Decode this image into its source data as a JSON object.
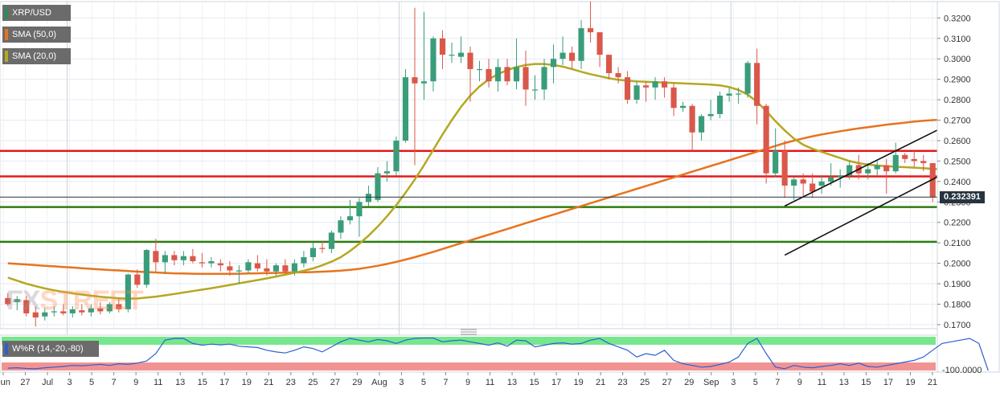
{
  "legend": {
    "symbol": "XRP/USD",
    "sma50": "SMA (50,0)",
    "sma20": "SMA (20,0)",
    "colors": {
      "symbol": "#2e8b57",
      "sma50": "#e8731e",
      "sma20": "#b5a820"
    }
  },
  "watermark": {
    "left": "FX",
    "right": "STREET"
  },
  "indicator": {
    "label": "W%R (14,-20,-80)",
    "bottom_value": "-100.0000"
  },
  "price_tag": "0.232391",
  "chart_data": {
    "type": "candlestick",
    "symbol": "XRP/USD",
    "ylim": [
      0.168,
      0.328
    ],
    "yticks": [
      "0.3200",
      "0.3100",
      "0.3000",
      "0.2900",
      "0.2800",
      "0.2700",
      "0.2600",
      "0.2500",
      "0.2400",
      "0.2300",
      "0.2200",
      "0.2100",
      "0.2000",
      "0.1900",
      "0.1800",
      "0.1700"
    ],
    "xticks": [
      "Jun",
      "27",
      "Jul",
      "3",
      "5",
      "7",
      "9",
      "11",
      "13",
      "15",
      "17",
      "19",
      "21",
      "23",
      "25",
      "27",
      "29",
      "Aug",
      "3",
      "5",
      "7",
      "9",
      "11",
      "13",
      "15",
      "17",
      "19",
      "21",
      "23",
      "25",
      "27",
      "29",
      "Sep",
      "3",
      "5",
      "7",
      "9",
      "11",
      "13",
      "15",
      "17",
      "19",
      "21"
    ],
    "horizontal_lines": [
      {
        "value": 0.255,
        "color": "#e31b1b"
      },
      {
        "value": 0.2425,
        "color": "#e31b1b"
      },
      {
        "value": 0.2275,
        "color": "#2e7d0f"
      },
      {
        "value": 0.2105,
        "color": "#2e7d0f"
      }
    ],
    "last_price": 0.232391,
    "candles": [
      {
        "o": 0.183,
        "h": 0.1855,
        "l": 0.179,
        "c": 0.18
      },
      {
        "o": 0.181,
        "h": 0.184,
        "l": 0.177,
        "c": 0.1825
      },
      {
        "o": 0.182,
        "h": 0.184,
        "l": 0.174,
        "c": 0.1755
      },
      {
        "o": 0.176,
        "h": 0.179,
        "l": 0.169,
        "c": 0.1735
      },
      {
        "o": 0.174,
        "h": 0.178,
        "l": 0.172,
        "c": 0.176
      },
      {
        "o": 0.176,
        "h": 0.179,
        "l": 0.174,
        "c": 0.1765
      },
      {
        "o": 0.1765,
        "h": 0.18,
        "l": 0.1745,
        "c": 0.1755
      },
      {
        "o": 0.1755,
        "h": 0.179,
        "l": 0.1735,
        "c": 0.1775
      },
      {
        "o": 0.177,
        "h": 0.18,
        "l": 0.1745,
        "c": 0.176
      },
      {
        "o": 0.176,
        "h": 0.18,
        "l": 0.174,
        "c": 0.178
      },
      {
        "o": 0.178,
        "h": 0.181,
        "l": 0.175,
        "c": 0.1765
      },
      {
        "o": 0.1765,
        "h": 0.181,
        "l": 0.1755,
        "c": 0.18
      },
      {
        "o": 0.18,
        "h": 0.183,
        "l": 0.176,
        "c": 0.1775
      },
      {
        "o": 0.1775,
        "h": 0.195,
        "l": 0.176,
        "c": 0.1945
      },
      {
        "o": 0.1945,
        "h": 0.197,
        "l": 0.188,
        "c": 0.1895
      },
      {
        "o": 0.1895,
        "h": 0.207,
        "l": 0.188,
        "c": 0.2065
      },
      {
        "o": 0.206,
        "h": 0.212,
        "l": 0.196,
        "c": 0.2005
      },
      {
        "o": 0.2005,
        "h": 0.206,
        "l": 0.195,
        "c": 0.204
      },
      {
        "o": 0.204,
        "h": 0.206,
        "l": 0.199,
        "c": 0.2015
      },
      {
        "o": 0.2015,
        "h": 0.206,
        "l": 0.199,
        "c": 0.2035
      },
      {
        "o": 0.2035,
        "h": 0.207,
        "l": 0.2,
        "c": 0.201
      },
      {
        "o": 0.2005,
        "h": 0.205,
        "l": 0.198,
        "c": 0.2
      },
      {
        "o": 0.2,
        "h": 0.203,
        "l": 0.198,
        "c": 0.201
      },
      {
        "o": 0.2,
        "h": 0.202,
        "l": 0.196,
        "c": 0.199
      },
      {
        "o": 0.1985,
        "h": 0.201,
        "l": 0.194,
        "c": 0.1965
      },
      {
        "o": 0.196,
        "h": 0.199,
        "l": 0.19,
        "c": 0.1965
      },
      {
        "o": 0.1965,
        "h": 0.202,
        "l": 0.195,
        "c": 0.2005
      },
      {
        "o": 0.2,
        "h": 0.204,
        "l": 0.196,
        "c": 0.1975
      },
      {
        "o": 0.1975,
        "h": 0.202,
        "l": 0.194,
        "c": 0.196
      },
      {
        "o": 0.196,
        "h": 0.2,
        "l": 0.194,
        "c": 0.199
      },
      {
        "o": 0.199,
        "h": 0.202,
        "l": 0.195,
        "c": 0.196
      },
      {
        "o": 0.196,
        "h": 0.202,
        "l": 0.194,
        "c": 0.2
      },
      {
        "o": 0.2,
        "h": 0.206,
        "l": 0.198,
        "c": 0.203
      },
      {
        "o": 0.203,
        "h": 0.21,
        "l": 0.201,
        "c": 0.2075
      },
      {
        "o": 0.2075,
        "h": 0.211,
        "l": 0.205,
        "c": 0.207
      },
      {
        "o": 0.207,
        "h": 0.216,
        "l": 0.205,
        "c": 0.215
      },
      {
        "o": 0.215,
        "h": 0.223,
        "l": 0.212,
        "c": 0.221
      },
      {
        "o": 0.221,
        "h": 0.231,
        "l": 0.219,
        "c": 0.223
      },
      {
        "o": 0.223,
        "h": 0.232,
        "l": 0.213,
        "c": 0.23
      },
      {
        "o": 0.23,
        "h": 0.238,
        "l": 0.228,
        "c": 0.234
      },
      {
        "o": 0.231,
        "h": 0.247,
        "l": 0.23,
        "c": 0.244
      },
      {
        "o": 0.244,
        "h": 0.25,
        "l": 0.24,
        "c": 0.245
      },
      {
        "o": 0.245,
        "h": 0.262,
        "l": 0.243,
        "c": 0.26
      },
      {
        "o": 0.26,
        "h": 0.295,
        "l": 0.259,
        "c": 0.291
      },
      {
        "o": 0.291,
        "h": 0.325,
        "l": 0.248,
        "c": 0.288
      },
      {
        "o": 0.288,
        "h": 0.323,
        "l": 0.28,
        "c": 0.289
      },
      {
        "o": 0.289,
        "h": 0.311,
        "l": 0.284,
        "c": 0.31
      },
      {
        "o": 0.31,
        "h": 0.314,
        "l": 0.295,
        "c": 0.302
      },
      {
        "o": 0.302,
        "h": 0.308,
        "l": 0.298,
        "c": 0.302
      },
      {
        "o": 0.301,
        "h": 0.311,
        "l": 0.298,
        "c": 0.303
      },
      {
        "o": 0.303,
        "h": 0.306,
        "l": 0.279,
        "c": 0.295
      },
      {
        "o": 0.295,
        "h": 0.299,
        "l": 0.289,
        "c": 0.295
      },
      {
        "o": 0.295,
        "h": 0.3,
        "l": 0.286,
        "c": 0.289
      },
      {
        "o": 0.289,
        "h": 0.3,
        "l": 0.284,
        "c": 0.296
      },
      {
        "o": 0.296,
        "h": 0.3,
        "l": 0.287,
        "c": 0.289
      },
      {
        "o": 0.289,
        "h": 0.31,
        "l": 0.285,
        "c": 0.296
      },
      {
        "o": 0.296,
        "h": 0.304,
        "l": 0.277,
        "c": 0.285
      },
      {
        "o": 0.285,
        "h": 0.292,
        "l": 0.28,
        "c": 0.285
      },
      {
        "o": 0.285,
        "h": 0.3,
        "l": 0.28,
        "c": 0.296
      },
      {
        "o": 0.296,
        "h": 0.307,
        "l": 0.288,
        "c": 0.3
      },
      {
        "o": 0.3,
        "h": 0.311,
        "l": 0.297,
        "c": 0.303
      },
      {
        "o": 0.303,
        "h": 0.306,
        "l": 0.295,
        "c": 0.299
      },
      {
        "o": 0.299,
        "h": 0.319,
        "l": 0.295,
        "c": 0.315
      },
      {
        "o": 0.315,
        "h": 0.328,
        "l": 0.308,
        "c": 0.313
      },
      {
        "o": 0.313,
        "h": 0.313,
        "l": 0.296,
        "c": 0.302
      },
      {
        "o": 0.302,
        "h": 0.302,
        "l": 0.29,
        "c": 0.293
      },
      {
        "o": 0.293,
        "h": 0.296,
        "l": 0.288,
        "c": 0.291
      },
      {
        "o": 0.291,
        "h": 0.294,
        "l": 0.278,
        "c": 0.28
      },
      {
        "o": 0.28,
        "h": 0.289,
        "l": 0.278,
        "c": 0.287
      },
      {
        "o": 0.287,
        "h": 0.289,
        "l": 0.279,
        "c": 0.286
      },
      {
        "o": 0.286,
        "h": 0.291,
        "l": 0.28,
        "c": 0.289
      },
      {
        "o": 0.289,
        "h": 0.291,
        "l": 0.281,
        "c": 0.286
      },
      {
        "o": 0.286,
        "h": 0.288,
        "l": 0.272,
        "c": 0.276
      },
      {
        "o": 0.276,
        "h": 0.279,
        "l": 0.274,
        "c": 0.277
      },
      {
        "o": 0.277,
        "h": 0.278,
        "l": 0.255,
        "c": 0.264
      },
      {
        "o": 0.264,
        "h": 0.273,
        "l": 0.26,
        "c": 0.272
      },
      {
        "o": 0.272,
        "h": 0.28,
        "l": 0.27,
        "c": 0.273
      },
      {
        "o": 0.273,
        "h": 0.284,
        "l": 0.271,
        "c": 0.282
      },
      {
        "o": 0.282,
        "h": 0.286,
        "l": 0.279,
        "c": 0.283
      },
      {
        "o": 0.283,
        "h": 0.286,
        "l": 0.278,
        "c": 0.283
      },
      {
        "o": 0.283,
        "h": 0.299,
        "l": 0.281,
        "c": 0.298
      },
      {
        "o": 0.298,
        "h": 0.305,
        "l": 0.268,
        "c": 0.277
      },
      {
        "o": 0.277,
        "h": 0.278,
        "l": 0.239,
        "c": 0.244
      },
      {
        "o": 0.244,
        "h": 0.266,
        "l": 0.242,
        "c": 0.255
      },
      {
        "o": 0.255,
        "h": 0.26,
        "l": 0.232,
        "c": 0.238
      },
      {
        "o": 0.238,
        "h": 0.242,
        "l": 0.231,
        "c": 0.241
      },
      {
        "o": 0.241,
        "h": 0.244,
        "l": 0.232,
        "c": 0.239
      },
      {
        "o": 0.239,
        "h": 0.244,
        "l": 0.232,
        "c": 0.235
      },
      {
        "o": 0.238,
        "h": 0.243,
        "l": 0.234,
        "c": 0.24
      },
      {
        "o": 0.24,
        "h": 0.249,
        "l": 0.238,
        "c": 0.242
      },
      {
        "o": 0.242,
        "h": 0.246,
        "l": 0.237,
        "c": 0.243
      },
      {
        "o": 0.243,
        "h": 0.25,
        "l": 0.241,
        "c": 0.248
      },
      {
        "o": 0.248,
        "h": 0.253,
        "l": 0.241,
        "c": 0.244
      },
      {
        "o": 0.244,
        "h": 0.249,
        "l": 0.241,
        "c": 0.246
      },
      {
        "o": 0.246,
        "h": 0.25,
        "l": 0.243,
        "c": 0.248
      },
      {
        "o": 0.248,
        "h": 0.251,
        "l": 0.234,
        "c": 0.245
      },
      {
        "o": 0.245,
        "h": 0.259,
        "l": 0.244,
        "c": 0.253
      },
      {
        "o": 0.253,
        "h": 0.254,
        "l": 0.249,
        "c": 0.251
      },
      {
        "o": 0.251,
        "h": 0.255,
        "l": 0.247,
        "c": 0.25
      },
      {
        "o": 0.25,
        "h": 0.253,
        "l": 0.245,
        "c": 0.249
      },
      {
        "o": 0.249,
        "h": 0.249,
        "l": 0.23,
        "c": 0.2324
      }
    ],
    "sma50": [
      0.2,
      0.1997,
      0.1994,
      0.1991,
      0.1988,
      0.1985,
      0.1982,
      0.1979,
      0.1976,
      0.1973,
      0.197,
      0.1967,
      0.1965,
      0.1962,
      0.1959,
      0.1957,
      0.1955,
      0.1953,
      0.1951,
      0.195,
      0.1949,
      0.1948,
      0.1948,
      0.1948,
      0.1948,
      0.1949,
      0.195,
      0.1951,
      0.1952,
      0.1953,
      0.1954,
      0.1955,
      0.1956,
      0.1957,
      0.1959,
      0.1961,
      0.1964,
      0.1968,
      0.1973,
      0.198,
      0.1988,
      0.1997,
      0.2007,
      0.2018,
      0.203,
      0.2043,
      0.2056,
      0.207,
      0.2084,
      0.2098,
      0.2112,
      0.2126,
      0.214,
      0.2154,
      0.2168,
      0.2182,
      0.2196,
      0.221,
      0.2224,
      0.2238,
      0.2252,
      0.2266,
      0.228,
      0.2294,
      0.2308,
      0.2322,
      0.2336,
      0.235,
      0.2364,
      0.2378,
      0.2392,
      0.2406,
      0.242,
      0.2434,
      0.2448,
      0.2462,
      0.2476,
      0.249,
      0.2504,
      0.2518,
      0.2532,
      0.2546,
      0.256,
      0.2574,
      0.2588,
      0.26,
      0.2611,
      0.2621,
      0.263,
      0.2638,
      0.2646,
      0.2653,
      0.266,
      0.2666,
      0.2672,
      0.2678,
      0.2683,
      0.2688,
      0.2693,
      0.2697,
      0.27,
      0.2703,
      0.2705,
      0.2706,
      0.2705,
      0.27,
      0.269
    ],
    "sma20": [
      0.193,
      0.1915,
      0.19,
      0.1888,
      0.1877,
      0.1868,
      0.186,
      0.1853,
      0.1847,
      0.1841,
      0.1836,
      0.1832,
      0.1829,
      0.1827,
      0.1828,
      0.1832,
      0.1837,
      0.1843,
      0.185,
      0.1857,
      0.1864,
      0.1871,
      0.1878,
      0.1886,
      0.1894,
      0.1902,
      0.191,
      0.1918,
      0.1926,
      0.1935,
      0.1944,
      0.1954,
      0.1964,
      0.1975,
      0.199,
      0.2008,
      0.203,
      0.206,
      0.2095,
      0.2135,
      0.218,
      0.223,
      0.2285,
      0.2345,
      0.241,
      0.248,
      0.2555,
      0.263,
      0.27,
      0.2765,
      0.282,
      0.2865,
      0.29,
      0.2925,
      0.2945,
      0.296,
      0.297,
      0.2975,
      0.2975,
      0.297,
      0.2962,
      0.295,
      0.2937,
      0.2925,
      0.2915,
      0.2905,
      0.2898,
      0.2893,
      0.289,
      0.2888,
      0.2886,
      0.2884,
      0.2882,
      0.288,
      0.2878,
      0.2876,
      0.2874,
      0.287,
      0.2862,
      0.2848,
      0.2825,
      0.279,
      0.2745,
      0.2695,
      0.265,
      0.261,
      0.258,
      0.256,
      0.2545,
      0.253,
      0.2515,
      0.25,
      0.249,
      0.2483,
      0.2478,
      0.2475,
      0.2472,
      0.247,
      0.2468,
      0.2465,
      0.2462,
      0.246,
      0.2458,
      0.2455,
      0.245,
      0.244,
      0.2425
    ],
    "channel_lines": [
      {
        "x1_index": 84,
        "y1": 0.228,
        "x2_index": 106,
        "y2": 0.2775
      },
      {
        "x1_index": 84,
        "y1": 0.204,
        "x2_index": 106,
        "y2": 0.255
      }
    ],
    "williams_r": [
      -93,
      -92,
      -94,
      -95,
      -92,
      -90,
      -88,
      -85,
      -86,
      -84,
      -82,
      -85,
      -80,
      -82,
      -78,
      -72,
      -50,
      -10,
      -5,
      -5,
      -20,
      -25,
      -22,
      -24,
      -22,
      -28,
      -30,
      -32,
      -40,
      -45,
      -48,
      -40,
      -30,
      -35,
      -45,
      -30,
      -15,
      -5,
      -10,
      -15,
      -8,
      -12,
      -20,
      -10,
      -5,
      -4,
      -4,
      -15,
      -12,
      -10,
      -15,
      -20,
      -25,
      -18,
      -28,
      -10,
      -12,
      -30,
      -25,
      -20,
      -18,
      -22,
      -20,
      -10,
      -5,
      -20,
      -30,
      -40,
      -60,
      -50,
      -55,
      -40,
      -70,
      -80,
      -85,
      -90,
      -88,
      -82,
      -75,
      -60,
      -20,
      -5,
      -50,
      -90,
      -95,
      -85,
      -90,
      -92,
      -88,
      -85,
      -80,
      -85,
      -78,
      -88,
      -90,
      -85,
      -80,
      -75,
      -70,
      -60,
      -40,
      -20,
      -15,
      -10,
      -5,
      -20,
      -100
    ],
    "williams_r_levels": {
      "overbought": -20,
      "oversold": -80
    },
    "williams_r_ylim": [
      -100,
      0
    ]
  }
}
